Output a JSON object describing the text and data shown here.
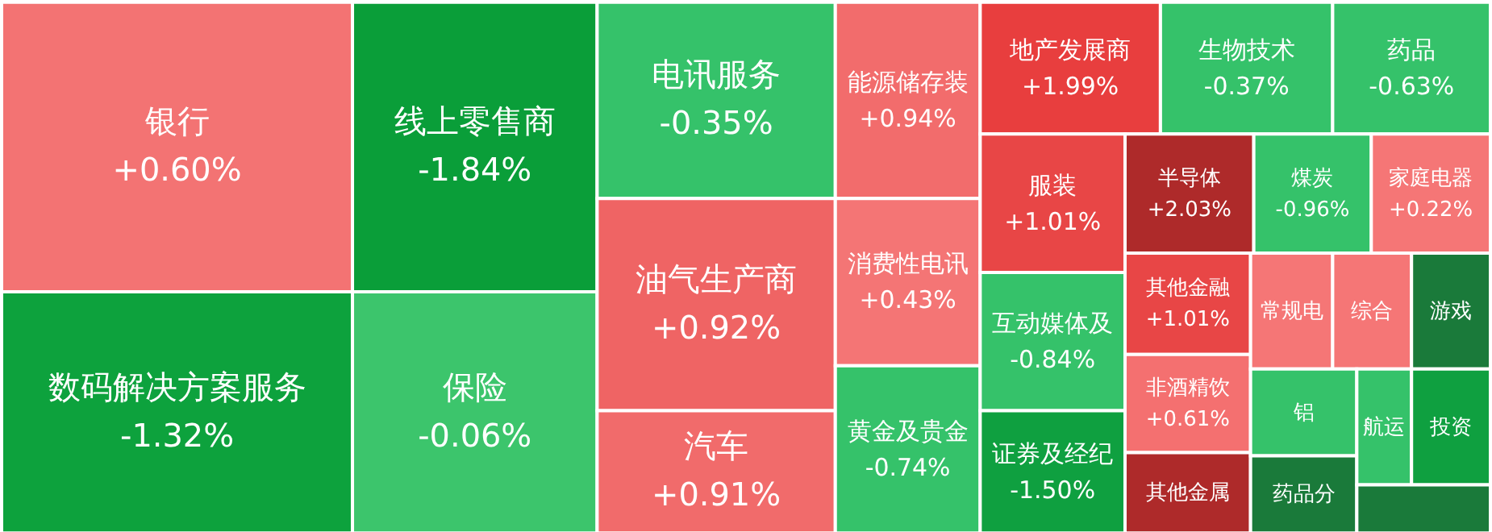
{
  "chart_data": {
    "type": "other",
    "categories": [
      "银行",
      "数码解决方案服务",
      "线上零售商",
      "保险",
      "电讯服务",
      "油气生产商",
      "汽车",
      "能源储存装",
      "消费性电讯",
      "黄金及贵金",
      "地产发展商",
      "生物技术",
      "药品",
      "服装",
      "半导体",
      "煤炭",
      "家庭电器",
      "互动媒体及",
      "证券及经纪",
      "其他金融",
      "非酒精饮",
      "其他金属",
      "常规电",
      "综合",
      "游戏",
      "铝",
      "药品分",
      "航运",
      "投资",
      null
    ],
    "values": [
      0.6,
      -1.32,
      -1.84,
      -0.06,
      -0.35,
      0.92,
      0.91,
      0.94,
      0.43,
      -0.74,
      1.99,
      -0.37,
      -0.63,
      1.01,
      2.03,
      -0.96,
      0.22,
      -0.84,
      -1.5,
      1.01,
      0.61,
      null,
      null,
      null,
      null,
      null,
      null,
      null,
      null,
      null
    ],
    "value_labels": [
      "+0.60%",
      "-1.32%",
      "-1.84%",
      "-0.06%",
      "-0.35%",
      "+0.92%",
      "+0.91%",
      "+0.94%",
      "+0.43%",
      "-0.74%",
      "+1.99%",
      "-0.37%",
      "-0.63%",
      "+1.01%",
      "+2.03%",
      "-0.96%",
      "+0.22%",
      "-0.84%",
      "-1.50%",
      "+1.01%",
      "+0.61%",
      null,
      null,
      null,
      null,
      null,
      null,
      null,
      null,
      null
    ],
    "colors": [
      "#f37373",
      "#0da23d",
      "#0a9e39",
      "#3cc56c",
      "#35c26a",
      "#ef6464",
      "#f16b6b",
      "#f26c6c",
      "#f47575",
      "#35c26a",
      "#e83e3e",
      "#35c26a",
      "#35c26a",
      "#e84646",
      "#ae2a2a",
      "#35c26a",
      "#f57676",
      "#35c26a",
      "#0fa040",
      "#e84646",
      "#f47070",
      "#ae2a2a",
      "#f57676",
      "#f57676",
      "#1a7a3a",
      "#35c26a",
      "#1a7a3a",
      "#35c26a",
      "#0fa040",
      "#1a7a3a"
    ]
  }
}
